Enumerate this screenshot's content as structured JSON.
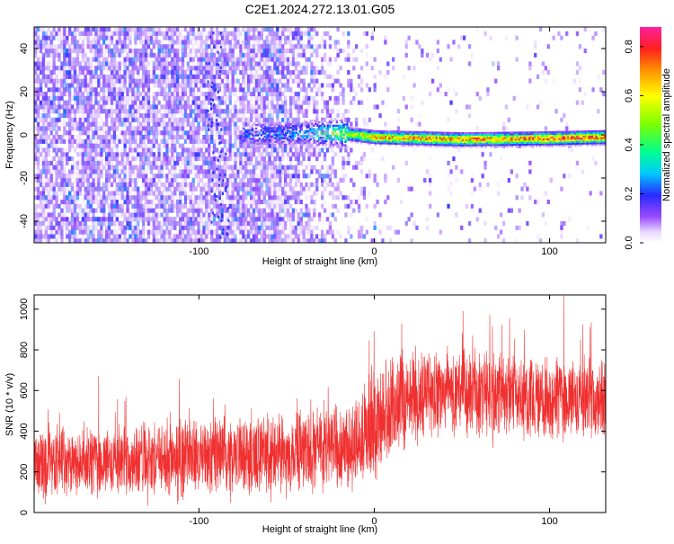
{
  "title": "C2E1.2024.272.13.01.G05",
  "chart_data": [
    {
      "type": "heatmap",
      "xlabel": "Height of straight line (km)",
      "ylabel": "Frequency (Hz)",
      "xlim": [
        -194,
        132
      ],
      "ylim": [
        -50,
        50
      ],
      "xticks": [
        -100,
        0,
        100
      ],
      "xtick_labels": [
        "-100",
        "0",
        "100"
      ],
      "yticks": [
        -40,
        -20,
        0,
        20,
        40
      ],
      "ytick_labels": [
        "-40",
        "-20",
        "0",
        "20",
        "40"
      ],
      "grid": false,
      "colormap": "rainbow",
      "colorbar": {
        "label": "Normalized spectral amplitude",
        "range": [
          0,
          0.88
        ],
        "ticks": [
          0,
          0.2,
          0.4,
          0.6,
          0.8
        ],
        "tick_labels": [
          "0.0",
          "0.2",
          "0.4",
          "0.6",
          "0.8"
        ]
      },
      "ridge": {
        "description_points_x": [
          -70,
          -40,
          -20,
          0,
          50,
          100,
          130
        ],
        "frequency_hz": [
          0,
          0.5,
          0.5,
          -1.5,
          -2.5,
          -2,
          -1.5
        ],
        "amplitude": [
          0.25,
          0.3,
          0.5,
          0.7,
          0.75,
          0.8,
          0.8
        ]
      }
    },
    {
      "type": "line",
      "xlabel": "Height of straight line (km)",
      "ylabel": "SNR (10 * v/v)",
      "xlim": [
        -194,
        132
      ],
      "ylim": [
        0,
        1070
      ],
      "xticks": [
        -100,
        0,
        100
      ],
      "xtick_labels": [
        "-100",
        "0",
        "100"
      ],
      "yticks": [
        0,
        200,
        400,
        600,
        800,
        1000
      ],
      "ytick_labels": [
        "0",
        "200",
        "400",
        "600",
        "800",
        "1000"
      ],
      "grid": false,
      "color": "#f03030",
      "envelope": {
        "x": [
          -194,
          -150,
          -100,
          -50,
          -20,
          -10,
          0,
          10,
          20,
          50,
          100,
          132
        ],
        "mean": [
          240,
          250,
          270,
          300,
          320,
          350,
          420,
          520,
          580,
          590,
          560,
          560
        ],
        "spread": [
          150,
          150,
          160,
          170,
          180,
          200,
          230,
          220,
          200,
          190,
          180,
          180
        ]
      }
    }
  ]
}
